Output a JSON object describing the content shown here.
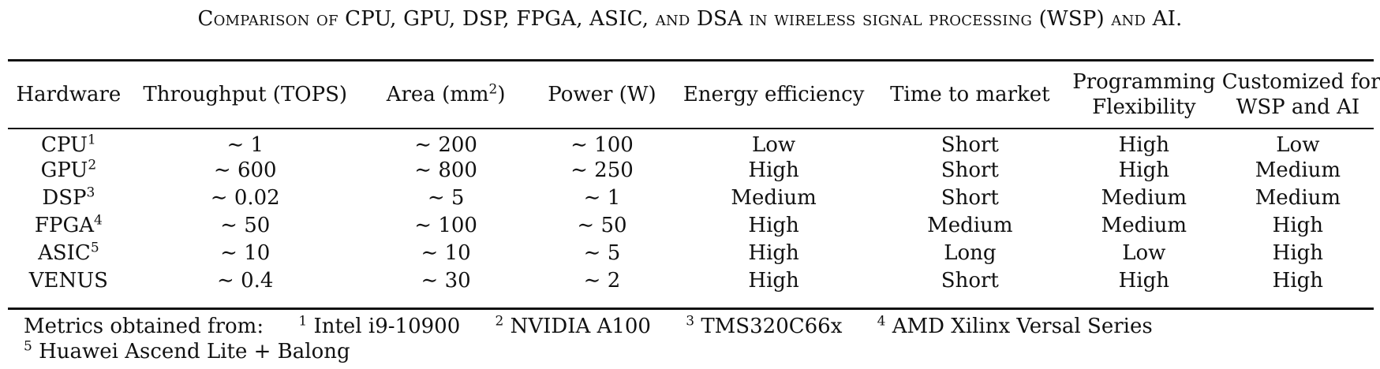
{
  "caption": "Comparison of CPU, GPU, DSP, FPGA, ASIC, and DSA in wireless signal processing (WSP) and AI.",
  "table": {
    "columns": [
      {
        "label": "Hardware"
      },
      {
        "label": "Throughput (TOPS)"
      },
      {
        "label": "Area (mm",
        "sup": "2",
        "suffix": ")"
      },
      {
        "label": "Power (W)"
      },
      {
        "label": "Energy efficiency"
      },
      {
        "label": "Time to market"
      },
      {
        "label": "Programming",
        "label2": "Flexibility"
      },
      {
        "label": "Customized for",
        "label2": "WSP and AI"
      }
    ],
    "rows": [
      {
        "hardware": "CPU",
        "note": "1",
        "throughput": "∼ 1",
        "area": "∼ 200",
        "power": "∼ 100",
        "energy": "Low",
        "ttm": "Short",
        "flex": "High",
        "custom": "Low"
      },
      {
        "hardware": "GPU",
        "note": "2",
        "throughput": "∼ 600",
        "area": "∼ 800",
        "power": "∼ 250",
        "energy": "High",
        "ttm": "Short",
        "flex": "High",
        "custom": "Medium"
      },
      {
        "hardware": "DSP",
        "note": "3",
        "throughput": "∼ 0.02",
        "area": "∼ 5",
        "power": "∼ 1",
        "energy": "Medium",
        "ttm": "Short",
        "flex": "Medium",
        "custom": "Medium"
      },
      {
        "hardware": "FPGA",
        "note": "4",
        "throughput": "∼ 50",
        "area": "∼ 100",
        "power": "∼ 50",
        "energy": "High",
        "ttm": "Medium",
        "flex": "Medium",
        "custom": "High"
      },
      {
        "hardware": "ASIC",
        "note": "5",
        "throughput": "∼ 10",
        "area": "∼ 10",
        "power": "∼ 5",
        "energy": "High",
        "ttm": "Long",
        "flex": "Low",
        "custom": "High"
      },
      {
        "hardware": "VENUS",
        "note": "",
        "throughput": "∼ 0.4",
        "area": "∼ 30",
        "power": "∼ 2",
        "energy": "High",
        "ttm": "Short",
        "flex": "High",
        "custom": "High"
      }
    ]
  },
  "footnotes": {
    "lead": "Metrics obtained from:",
    "items": [
      {
        "mark": "1",
        "text": "Intel i9-10900"
      },
      {
        "mark": "2",
        "text": "NVIDIA A100"
      },
      {
        "mark": "3",
        "text": "TMS320C66x"
      },
      {
        "mark": "4",
        "text": "AMD Xilinx Versal Series"
      },
      {
        "mark": "5",
        "text": "Huawei Ascend Lite + Balong"
      }
    ]
  }
}
